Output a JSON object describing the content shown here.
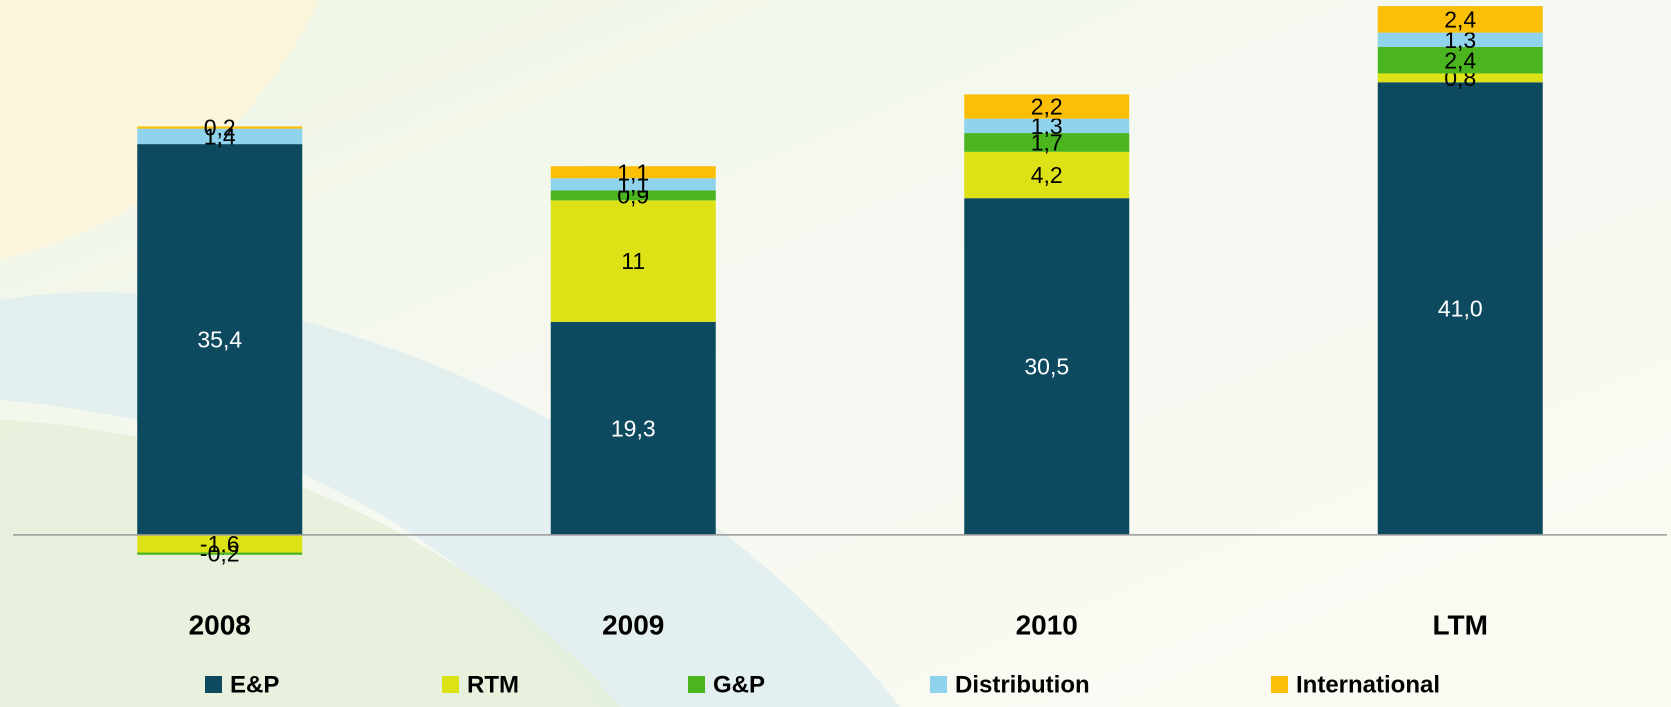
{
  "chart_data": {
    "type": "stacked_bar",
    "categories": [
      "2008",
      "2009",
      "2010",
      "LTM"
    ],
    "series": [
      {
        "name": "E&P",
        "color": "#0d4a5f",
        "values": [
          35.4,
          19.3,
          30.5,
          41.0
        ],
        "value_labels": [
          "35,4",
          "19,3",
          "30,5",
          "41,0"
        ]
      },
      {
        "name": "RTM",
        "color": "#dde216",
        "values": [
          -1.6,
          11,
          4.2,
          0.8
        ],
        "value_labels": [
          "-1,6",
          "11",
          "4,2",
          "0,8"
        ]
      },
      {
        "name": "G&P",
        "color": "#4ab51f",
        "values": [
          -0.2,
          0.9,
          1.7,
          2.4
        ],
        "value_labels": [
          "-0,2",
          "0,9",
          "1,7",
          "2,4"
        ]
      },
      {
        "name": "Distribution",
        "color": "#8fd3ec",
        "values": [
          1.4,
          1.1,
          1.3,
          1.3
        ],
        "value_labels": [
          "1,4",
          "1,1",
          "1,3",
          "1,3"
        ]
      },
      {
        "name": "International",
        "color": "#fbbf07",
        "values": [
          0.2,
          1.1,
          2.2,
          2.4
        ],
        "value_labels": [
          "0,2",
          "1,1",
          "2,2",
          "2,4"
        ]
      }
    ],
    "ylim": [
      -3,
      48
    ],
    "legend": "bottom"
  }
}
